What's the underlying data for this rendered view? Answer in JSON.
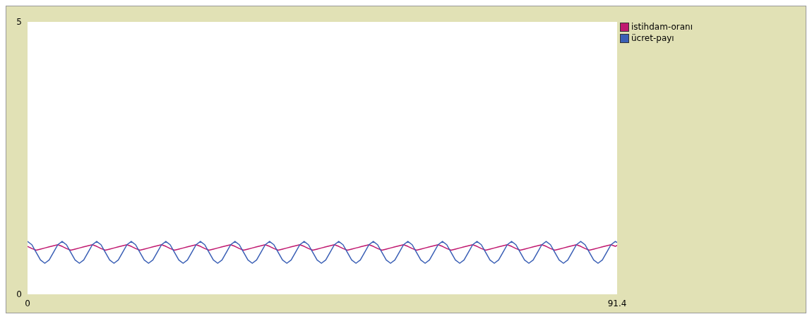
{
  "chart_data": {
    "type": "line",
    "x": [
      0,
      0.67,
      1.34,
      2.01,
      2.68,
      3.35,
      4.02,
      4.69,
      5.36,
      6.03,
      6.7,
      7.37,
      8.04,
      8.71,
      9.38,
      10.05,
      10.72,
      11.39,
      12.06,
      12.73,
      13.4,
      14.07,
      14.74,
      15.41,
      16.08,
      16.75,
      17.42,
      18.09,
      18.76,
      19.43,
      20.1,
      20.77,
      21.44,
      22.11,
      22.78,
      23.45,
      24.12,
      24.79,
      25.46,
      26.13,
      26.8,
      27.47,
      28.14,
      28.81,
      29.48,
      30.15,
      30.82,
      31.49,
      32.16,
      32.83,
      33.5,
      34.17,
      34.84,
      35.51,
      36.18,
      36.85,
      37.52,
      38.19,
      38.86,
      39.53,
      40.2,
      40.87,
      41.54,
      42.21,
      42.88,
      43.55,
      44.22,
      44.89,
      45.56,
      46.23,
      46.9,
      47.57,
      48.24,
      48.91,
      49.58,
      50.25,
      50.92,
      51.59,
      52.26,
      52.93,
      53.6,
      54.27,
      54.94,
      55.61,
      56.28,
      56.95,
      57.62,
      58.29,
      58.96,
      59.63,
      60.3,
      60.97,
      61.64,
      62.31,
      62.98,
      63.65,
      64.32,
      64.99,
      65.66,
      66.33,
      67,
      67.67,
      68.34,
      69.01,
      69.68,
      70.35,
      71.02,
      71.69,
      72.36,
      73.03,
      73.7,
      74.37,
      75.04,
      75.71,
      76.38,
      77.05,
      77.72,
      78.39,
      79.06,
      79.73,
      80.4,
      81.07,
      81.74,
      82.41,
      83.08,
      83.75,
      84.42,
      85.09,
      85.76,
      86.43,
      87.1,
      87.77,
      88.44,
      89.11,
      89.78,
      90.45,
      91.12,
      91.4
    ],
    "series": [
      {
        "name": "istihdam-oranı",
        "color": "#c0186f",
        "values": [
          0.88,
          0.84,
          0.81,
          0.83,
          0.85,
          0.87,
          0.89,
          0.91,
          0.88,
          0.84,
          0.81,
          0.83,
          0.85,
          0.87,
          0.89,
          0.91,
          0.88,
          0.84,
          0.81,
          0.83,
          0.85,
          0.87,
          0.89,
          0.91,
          0.88,
          0.84,
          0.81,
          0.83,
          0.85,
          0.87,
          0.89,
          0.91,
          0.88,
          0.84,
          0.81,
          0.83,
          0.85,
          0.87,
          0.89,
          0.91,
          0.88,
          0.84,
          0.81,
          0.83,
          0.85,
          0.87,
          0.89,
          0.91,
          0.88,
          0.84,
          0.81,
          0.83,
          0.85,
          0.87,
          0.89,
          0.91,
          0.88,
          0.84,
          0.81,
          0.83,
          0.85,
          0.87,
          0.89,
          0.91,
          0.88,
          0.84,
          0.81,
          0.83,
          0.85,
          0.87,
          0.89,
          0.91,
          0.88,
          0.84,
          0.81,
          0.83,
          0.85,
          0.87,
          0.89,
          0.91,
          0.88,
          0.84,
          0.81,
          0.83,
          0.85,
          0.87,
          0.89,
          0.91,
          0.88,
          0.84,
          0.81,
          0.83,
          0.85,
          0.87,
          0.89,
          0.91,
          0.88,
          0.84,
          0.81,
          0.83,
          0.85,
          0.87,
          0.89,
          0.91,
          0.88,
          0.84,
          0.81,
          0.83,
          0.85,
          0.87,
          0.89,
          0.91,
          0.88,
          0.84,
          0.81,
          0.83,
          0.85,
          0.87,
          0.89,
          0.91,
          0.88,
          0.84,
          0.81,
          0.83,
          0.85,
          0.87,
          0.89,
          0.91,
          0.88,
          0.84,
          0.81,
          0.83,
          0.85,
          0.87,
          0.89,
          0.91,
          0.88,
          0.9
        ]
      },
      {
        "name": "ücret-payı",
        "color": "#3a5fb5",
        "values": [
          0.97,
          0.91,
          0.77,
          0.63,
          0.57,
          0.63,
          0.77,
          0.91,
          0.97,
          0.91,
          0.77,
          0.63,
          0.57,
          0.63,
          0.77,
          0.91,
          0.97,
          0.91,
          0.77,
          0.63,
          0.57,
          0.63,
          0.77,
          0.91,
          0.97,
          0.91,
          0.77,
          0.63,
          0.57,
          0.63,
          0.77,
          0.91,
          0.97,
          0.91,
          0.77,
          0.63,
          0.57,
          0.63,
          0.77,
          0.91,
          0.97,
          0.91,
          0.77,
          0.63,
          0.57,
          0.63,
          0.77,
          0.91,
          0.97,
          0.91,
          0.77,
          0.63,
          0.57,
          0.63,
          0.77,
          0.91,
          0.97,
          0.91,
          0.77,
          0.63,
          0.57,
          0.63,
          0.77,
          0.91,
          0.97,
          0.91,
          0.77,
          0.63,
          0.57,
          0.63,
          0.77,
          0.91,
          0.97,
          0.91,
          0.77,
          0.63,
          0.57,
          0.63,
          0.77,
          0.91,
          0.97,
          0.91,
          0.77,
          0.63,
          0.57,
          0.63,
          0.77,
          0.91,
          0.97,
          0.91,
          0.77,
          0.63,
          0.57,
          0.63,
          0.77,
          0.91,
          0.97,
          0.91,
          0.77,
          0.63,
          0.57,
          0.63,
          0.77,
          0.91,
          0.97,
          0.91,
          0.77,
          0.63,
          0.57,
          0.63,
          0.77,
          0.91,
          0.97,
          0.91,
          0.77,
          0.63,
          0.57,
          0.63,
          0.77,
          0.91,
          0.97,
          0.91,
          0.77,
          0.63,
          0.57,
          0.63,
          0.77,
          0.91,
          0.97,
          0.91,
          0.77,
          0.63,
          0.57,
          0.63,
          0.77,
          0.91,
          0.97,
          0.95
        ]
      }
    ],
    "xlim": [
      0,
      91.4
    ],
    "xticks": [
      0,
      91.4
    ],
    "ylim": [
      0,
      5
    ],
    "yticks": [
      0,
      5
    ],
    "legend": "top right",
    "marker": "none"
  }
}
